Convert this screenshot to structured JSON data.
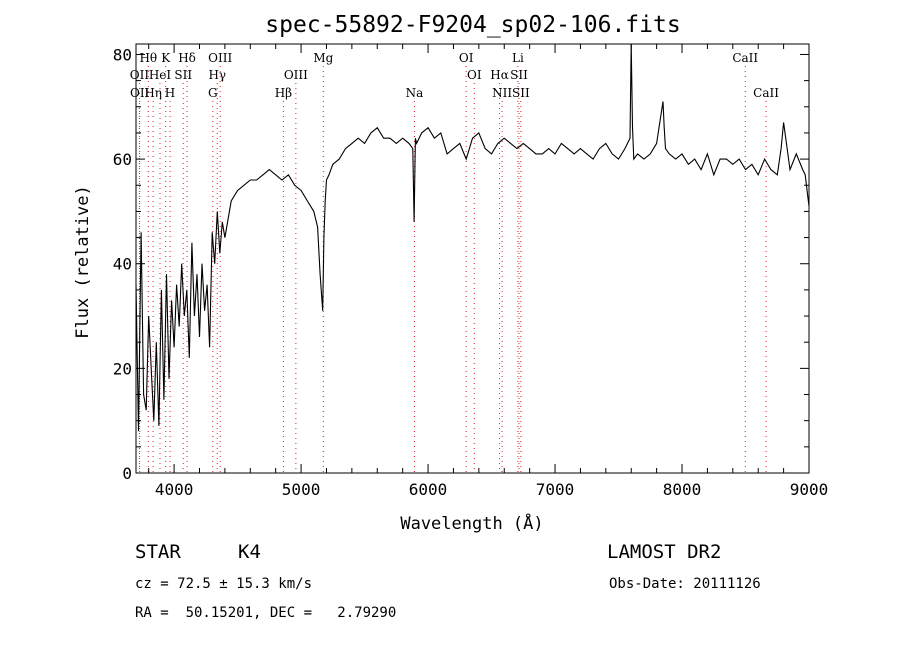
{
  "chart_data": {
    "type": "line",
    "title": "spec-55892-F9204_sp02-106.fits",
    "xlabel": "Wavelength (Å)",
    "ylabel": "Flux (relative)",
    "xlim": [
      3700,
      9000
    ],
    "ylim": [
      0,
      82
    ],
    "xticks": [
      4000,
      5000,
      6000,
      7000,
      8000,
      9000
    ],
    "yticks": [
      0,
      20,
      40,
      60,
      80
    ],
    "grid": false,
    "series": [
      {
        "x": [
          3700,
          3720,
          3740,
          3760,
          3780,
          3800,
          3820,
          3840,
          3860,
          3880,
          3900,
          3920,
          3940,
          3960,
          3980,
          4000,
          4020,
          4040,
          4060,
          4080,
          4100,
          4120,
          4140,
          4160,
          4180,
          4200,
          4220,
          4240,
          4260,
          4280,
          4300,
          4320,
          4340,
          4360,
          4380,
          4400,
          4450,
          4500,
          4550,
          4600,
          4650,
          4700,
          4750,
          4800,
          4850,
          4900,
          4950,
          5000,
          5050,
          5100,
          5130,
          5150,
          5170,
          5180,
          5190,
          5200,
          5220,
          5250,
          5300,
          5350,
          5400,
          5450,
          5500,
          5550,
          5600,
          5650,
          5700,
          5750,
          5800,
          5850,
          5880,
          5890,
          5900,
          5910,
          5950,
          6000,
          6050,
          6100,
          6150,
          6200,
          6250,
          6300,
          6350,
          6400,
          6450,
          6500,
          6550,
          6600,
          6650,
          6700,
          6750,
          6800,
          6850,
          6900,
          6950,
          7000,
          7050,
          7100,
          7150,
          7200,
          7250,
          7300,
          7350,
          7400,
          7450,
          7500,
          7550,
          7590,
          7600,
          7610,
          7620,
          7650,
          7700,
          7750,
          7800,
          7850,
          7860,
          7870,
          7900,
          7950,
          8000,
          8050,
          8100,
          8150,
          8200,
          8250,
          8300,
          8350,
          8400,
          8450,
          8500,
          8550,
          8600,
          8650,
          8700,
          8750,
          8780,
          8800,
          8850,
          8900,
          8950,
          8970,
          8990,
          9000
        ],
        "y": [
          36,
          8,
          46,
          15,
          12,
          30,
          20,
          10,
          25,
          9,
          35,
          14,
          38,
          18,
          33,
          24,
          36,
          28,
          40,
          30,
          35,
          22,
          44,
          30,
          38,
          26,
          40,
          31,
          36,
          24,
          46,
          40,
          50,
          42,
          48,
          45,
          52,
          54,
          55,
          56,
          56,
          57,
          58,
          57,
          56,
          57,
          55,
          54,
          52,
          50,
          47,
          38,
          31,
          45,
          52,
          56,
          57,
          59,
          60,
          62,
          63,
          64,
          63,
          65,
          66,
          64,
          64,
          63,
          64,
          63,
          62,
          48,
          64,
          63,
          65,
          66,
          64,
          65,
          61,
          62,
          63,
          60,
          64,
          65,
          62,
          61,
          63,
          64,
          63,
          62,
          63,
          62,
          61,
          61,
          62,
          61,
          63,
          62,
          61,
          62,
          61,
          60,
          62,
          63,
          61,
          60,
          62,
          64,
          82,
          66,
          60,
          61,
          60,
          61,
          63,
          71,
          66,
          62,
          61,
          60,
          61,
          59,
          60,
          58,
          61,
          57,
          60,
          60,
          59,
          60,
          58,
          59,
          57,
          60,
          58,
          57,
          62,
          67,
          58,
          61,
          58,
          57,
          53,
          51
        ]
      }
    ],
    "lines": [
      {
        "name": "Hθ",
        "x": 3797,
        "row": 1
      },
      {
        "name": "K",
        "x": 3934,
        "row": 1
      },
      {
        "name": "Hδ",
        "x": 4102,
        "row": 1
      },
      {
        "name": "OIII",
        "x": 4363,
        "row": 1
      },
      {
        "name": "Mg",
        "x": 5175,
        "row": 1
      },
      {
        "name": "OI",
        "x": 6300,
        "row": 1
      },
      {
        "name": "Li",
        "x": 6708,
        "row": 1
      },
      {
        "name": "CaII",
        "x": 8498,
        "row": 1
      },
      {
        "name": "OII",
        "x": 3727,
        "row": 2
      },
      {
        "name": "HeI",
        "x": 3889,
        "row": 2
      },
      {
        "name": "SII",
        "x": 4072,
        "row": 2
      },
      {
        "name": "Hγ",
        "x": 4340,
        "row": 2
      },
      {
        "name": "OIII",
        "x": 4959,
        "row": 2
      },
      {
        "name": "OI",
        "x": 6364,
        "row": 2
      },
      {
        "name": "Hα",
        "x": 6563,
        "row": 2
      },
      {
        "name": "SII",
        "x": 6716,
        "row": 2
      },
      {
        "name": "OII",
        "x": 3729,
        "row": 3
      },
      {
        "name": "Hη",
        "x": 3835,
        "row": 3
      },
      {
        "name": "H",
        "x": 3968,
        "row": 3
      },
      {
        "name": "G",
        "x": 4305,
        "row": 3
      },
      {
        "name": "Hβ",
        "x": 4861,
        "row": 3
      },
      {
        "name": "Na",
        "x": 5893,
        "row": 3
      },
      {
        "name": "NII",
        "x": 6583,
        "row": 3
      },
      {
        "name": "SII",
        "x": 6731,
        "row": 3
      },
      {
        "name": "CaII",
        "x": 8662,
        "row": 3
      }
    ]
  },
  "info": {
    "object_class": "STAR",
    "subclass": "K4",
    "survey": "LAMOST DR2",
    "cz": "cz = 72.5 ± 15.3 km/s",
    "obs_date": "Obs-Date: 20111126",
    "coords": "RA =  50.15201, DEC =   2.79290"
  }
}
